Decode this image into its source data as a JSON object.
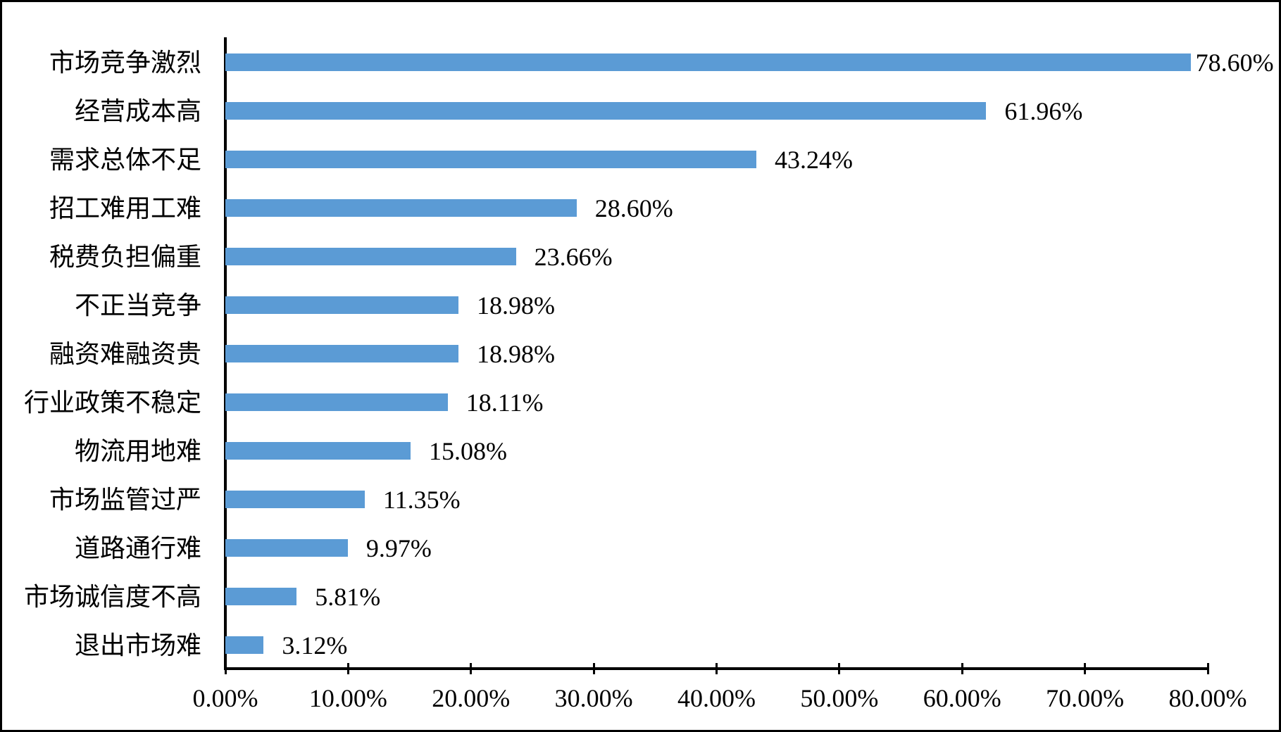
{
  "chart_data": {
    "type": "bar",
    "orientation": "horizontal",
    "title": "",
    "categories": [
      "市场竞争激烈",
      "经营成本高",
      "需求总体不足",
      "招工难用工难",
      "税费负担偏重",
      "不正当竞争",
      "融资难融资贵",
      "行业政策不稳定",
      "物流用地难",
      "市场监管过严",
      "道路通行难",
      "市场诚信度不高",
      "退出市场难"
    ],
    "values": [
      78.6,
      61.96,
      43.24,
      28.6,
      23.66,
      18.98,
      18.98,
      18.11,
      15.08,
      11.35,
      9.97,
      5.81,
      3.12
    ],
    "data_labels": [
      "78.60%",
      "61.96%",
      "43.24%",
      "28.60%",
      "23.66%",
      "18.98%",
      "18.98%",
      "18.11%",
      "15.08%",
      "11.35%",
      "9.97%",
      "5.81%",
      "3.12%"
    ],
    "x_axis": {
      "tick_labels": [
        "0.00%",
        "10.00%",
        "20.00%",
        "30.00%",
        "40.00%",
        "50.00%",
        "60.00%",
        "70.00%",
        "80.00%"
      ],
      "min": 0,
      "max": 80,
      "step": 10
    },
    "xlim": [
      0,
      80
    ],
    "grid": false,
    "legend": false,
    "colors": {
      "bar": "#5B9BD5",
      "axis": "#000000",
      "text": "#000000",
      "background": "#FFFFFF",
      "frame_border": "#000000"
    }
  }
}
